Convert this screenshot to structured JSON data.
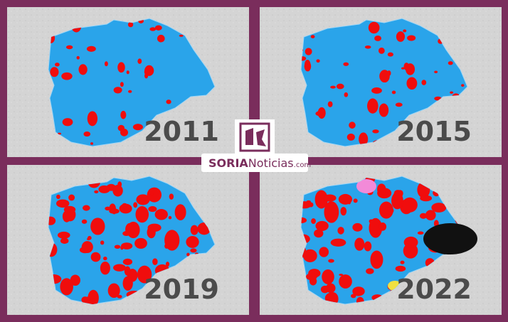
{
  "panels": [
    {
      "year": "2011"
    },
    {
      "year": "2015"
    },
    {
      "year": "2019"
    },
    {
      "year": "2022"
    }
  ],
  "logo": {
    "brand": "SORIA",
    "name": "Noticias",
    "tld": ".com"
  }
}
